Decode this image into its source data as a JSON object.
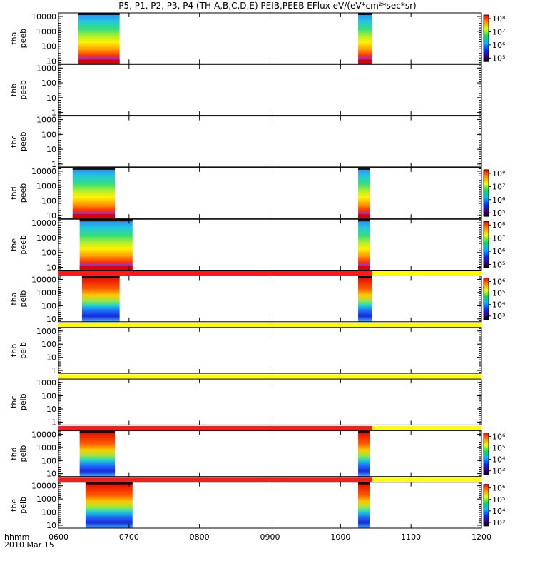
{
  "chart_data": {
    "type": "heatmap",
    "title": "P5, P1, P2, P3, P4 (TH-A,B,C,D,E) PEIB,PEEB EFlux eV/(eV*cm²*sec*sr)",
    "x_ticks": [
      "0600",
      "0700",
      "0800",
      "0900",
      "1000",
      "1100",
      "1200"
    ],
    "x_range": [
      "0600",
      "1200"
    ],
    "x_axis_label": "hhmm",
    "date_label": "2010 Mar 15",
    "y_scale": "log",
    "panels": [
      {
        "label": [
          "tha",
          "peeb"
        ],
        "y_ticks": [
          "10",
          "100",
          "1000",
          "10000"
        ],
        "colorbar": [
          "10⁸",
          "10⁷",
          "10⁶",
          "10⁵"
        ],
        "coverage": [
          [
            "0617",
            "0652"
          ],
          [
            "1015",
            "1027"
          ]
        ],
        "status_bar": null
      },
      {
        "label": [
          "thb",
          "peeb"
        ],
        "y_ticks": [
          "1",
          "10",
          "100",
          "1000"
        ],
        "colorbar": null,
        "coverage": [],
        "status_bar": null
      },
      {
        "label": [
          "thc",
          "peeb"
        ],
        "y_ticks": [
          "1",
          "10",
          "100",
          "1000"
        ],
        "colorbar": null,
        "coverage": [],
        "status_bar": null
      },
      {
        "label": [
          "thd",
          "peeb"
        ],
        "y_ticks": [
          "10",
          "100",
          "1000",
          "10000"
        ],
        "colorbar": [
          "10⁸",
          "10⁷",
          "10⁶",
          "10⁵"
        ],
        "coverage": [
          [
            "0612",
            "0648"
          ],
          [
            "1015",
            "1025"
          ]
        ],
        "status_bar": null
      },
      {
        "label": [
          "the",
          "peeb"
        ],
        "y_ticks": [
          "10",
          "100",
          "1000",
          "10000"
        ],
        "colorbar": [
          "10⁸",
          "10⁷",
          "10⁶",
          "10⁵"
        ],
        "coverage": [
          [
            "0618",
            "0703"
          ],
          [
            "1015",
            "1025"
          ]
        ],
        "status_bar": null
      },
      {
        "label": [
          "tha",
          "peib"
        ],
        "y_ticks": [
          "10",
          "100",
          "1000",
          "10000"
        ],
        "colorbar": [
          "10⁶",
          "10⁵",
          "10⁴",
          "10³"
        ],
        "coverage": [
          [
            "0620",
            "0652"
          ],
          [
            "1015",
            "1027"
          ]
        ],
        "status_bar": [
          {
            "color": "#ff1a1a",
            "to": "1027"
          },
          {
            "color": "#ffff00",
            "to": "1200"
          }
        ]
      },
      {
        "label": [
          "thb",
          "peib"
        ],
        "y_ticks": [
          "1",
          "10",
          "100",
          "1000"
        ],
        "colorbar": null,
        "coverage": [],
        "status_bar": [
          {
            "color": "#ffff00",
            "to": "1200"
          }
        ]
      },
      {
        "label": [
          "thc",
          "peib"
        ],
        "y_ticks": [
          "1",
          "10",
          "100",
          "1000"
        ],
        "colorbar": null,
        "coverage": [],
        "status_bar": [
          {
            "color": "#ffff00",
            "to": "1200"
          }
        ]
      },
      {
        "label": [
          "thd",
          "peib"
        ],
        "y_ticks": [
          "10",
          "100",
          "1000",
          "10000"
        ],
        "colorbar": [
          "10⁶",
          "10⁵",
          "10⁴",
          "10³"
        ],
        "coverage": [
          [
            "0618",
            "0648"
          ],
          [
            "1015",
            "1025"
          ]
        ],
        "status_bar": [
          {
            "color": "#ff1a1a",
            "to": "1027"
          },
          {
            "color": "#ffff00",
            "to": "1200"
          }
        ]
      },
      {
        "label": [
          "the",
          "peib"
        ],
        "y_ticks": [
          "10",
          "100",
          "1000",
          "10000"
        ],
        "colorbar": [
          "10⁶",
          "10⁵",
          "10⁴",
          "10³"
        ],
        "coverage": [
          [
            "0623",
            "0703"
          ],
          [
            "1015",
            "1025"
          ]
        ],
        "status_bar": [
          {
            "color": "#ff1a1a",
            "to": "1027"
          },
          {
            "color": "#ffff00",
            "to": "1200"
          }
        ]
      }
    ]
  }
}
